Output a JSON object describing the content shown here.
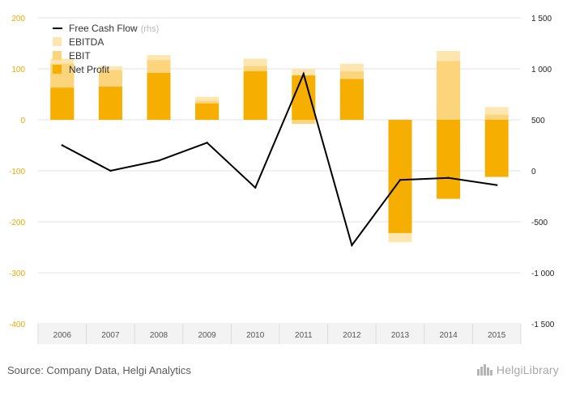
{
  "chart_data": {
    "type": "bar",
    "categories": [
      "2006",
      "2007",
      "2008",
      "2009",
      "2010",
      "2011",
      "2012",
      "2013",
      "2014",
      "2015"
    ],
    "series": [
      {
        "name": "EBITDA",
        "axis": "left",
        "color": "#fde6b0",
        "values": [
          120,
          105,
          127,
          45,
          120,
          100,
          110,
          -240,
          135,
          25
        ]
      },
      {
        "name": "EBIT",
        "axis": "left",
        "color": "#fbd47c",
        "values": [
          110,
          97,
          117,
          37,
          105,
          -8,
          95,
          -222,
          115,
          10
        ]
      },
      {
        "name": "Net Profit",
        "axis": "left",
        "color": "#f6ae00",
        "values": [
          63,
          65,
          92,
          32,
          95,
          87,
          80,
          -222,
          -155,
          -112
        ]
      },
      {
        "name": "Free Cash Flow",
        "axis": "right",
        "type": "line",
        "color": "#000000",
        "values": [
          250,
          0,
          100,
          275,
          -165,
          950,
          -730,
          -90,
          -70,
          -140
        ]
      }
    ],
    "y_left": {
      "min": -400,
      "max": 200,
      "ticks": [
        200,
        100,
        0,
        -100,
        -200,
        -300,
        -400
      ],
      "tick_labels": [
        "200",
        "100",
        "0",
        "-100",
        "-200",
        "-300",
        "-400"
      ]
    },
    "y_right": {
      "min": -1500,
      "max": 1500,
      "ticks": [
        1500,
        1000,
        500,
        0,
        -500,
        -1000,
        -1500
      ],
      "tick_labels": [
        "1 500",
        "1 000",
        "500",
        "0",
        "-500",
        "-1 000",
        "-1 500"
      ]
    },
    "legend": [
      {
        "label": "Free Cash Flow",
        "suffix": "(rhs)",
        "kind": "line"
      },
      {
        "label": "EBITDA",
        "kind": "box"
      },
      {
        "label": "EBIT",
        "kind": "box"
      },
      {
        "label": "Net Profit",
        "kind": "box"
      }
    ],
    "legend_position": "top-left",
    "grid": true
  },
  "colors": {
    "left_axis_text": "#f0a800",
    "right_axis_text": "#222222",
    "x_axis_text": "#555555",
    "grid": "#e3e3e3",
    "axis_box_bg": "#f3f3f3"
  },
  "footer": {
    "source": "Source: Company Data, Helgi Analytics",
    "brand": "HelgiLibrary",
    "brand_icon": "helgi-logo-icon"
  }
}
